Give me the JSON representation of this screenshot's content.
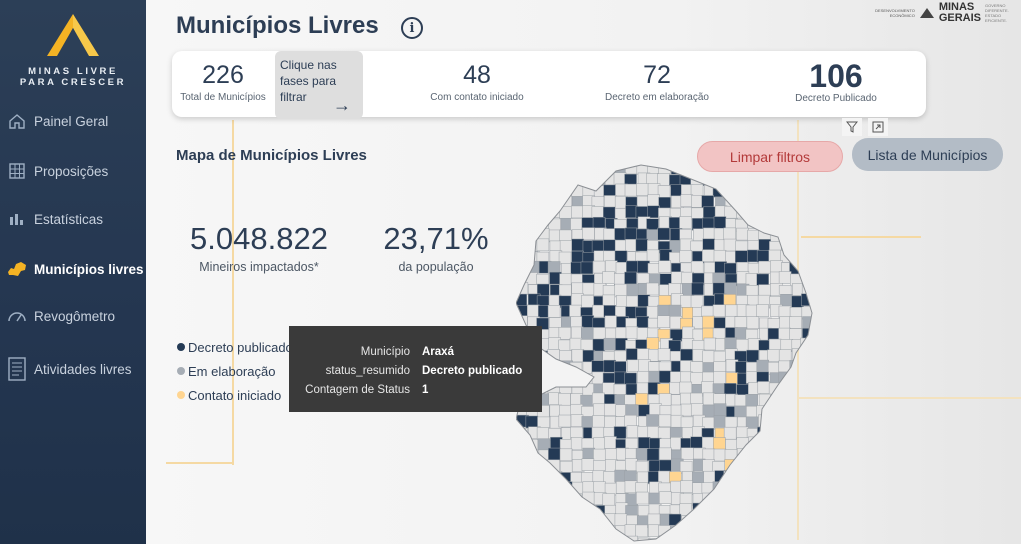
{
  "sidebar": {
    "logo_line1": "MINAS LIVRE",
    "logo_line2": "PARA CRESCER",
    "items": [
      {
        "label": "Painel Geral",
        "icon": "home-icon"
      },
      {
        "label": "Proposições",
        "icon": "grid-icon"
      },
      {
        "label": "Estatísticas",
        "icon": "bar-chart-icon"
      },
      {
        "label": "Municípios livres",
        "icon": "minas-map-icon",
        "active": true
      },
      {
        "label": "Revogômetro",
        "icon": "gauge-icon"
      },
      {
        "label": "Atividades livres",
        "icon": "document-icon"
      }
    ]
  },
  "header": {
    "title": "Municípios Livres",
    "brand_small": "DESENVOLVIMENTO ECONÔMICO",
    "brand_main_1": "MINAS",
    "brand_main_2": "GERAIS",
    "brand_tag": "GOVERNO DIFERENTE. ESTADO EFICIENTE."
  },
  "kpis": {
    "total": {
      "value": "226",
      "label": "Total de Municípios"
    },
    "filter_hint": "Clique nas fases para filtrar",
    "contact": {
      "value": "48",
      "label": "Com contato iniciado"
    },
    "elaboration": {
      "value": "72",
      "label": "Decreto em elaboração"
    },
    "published": {
      "value": "106",
      "label": "Decreto Publicado"
    }
  },
  "map_section": {
    "title": "Mapa de Municípios Livres",
    "clear_button": "Limpar filtros",
    "list_button": "Lista de Municípios"
  },
  "stats": {
    "impacted": {
      "value": "5.048.822",
      "label": "Mineiros impactados*"
    },
    "population": {
      "value": "23,71%",
      "label": "da população"
    }
  },
  "legend": [
    {
      "label": "Decreto publicado",
      "color": "#243a55"
    },
    {
      "label": "Em elaboração",
      "color": "#a6adb5"
    },
    {
      "label": "Contato iniciado",
      "color": "#ffd591"
    }
  ],
  "tooltip": {
    "rows": [
      {
        "key": "Município",
        "value": "Araxá"
      },
      {
        "key": "status_resumido",
        "value": "Decreto publicado"
      },
      {
        "key": "Contagem de Status",
        "value": "1"
      }
    ]
  },
  "colors": {
    "published": "#243a55",
    "elaboration": "#a6adb5",
    "contact": "#ffd591",
    "none": "#e4e4e4",
    "sidebar": "#2c3f57",
    "clear_button": "#f2c4c4"
  }
}
